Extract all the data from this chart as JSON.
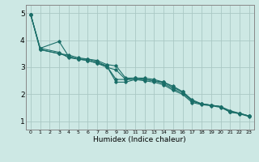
{
  "title": "",
  "xlabel": "Humidex (Indice chaleur)",
  "background_color": "#cde8e4",
  "grid_color": "#aac8c4",
  "line_color": "#1a6e68",
  "xlim": [
    -0.5,
    23.5
  ],
  "ylim": [
    0.7,
    5.3
  ],
  "xticks": [
    0,
    1,
    2,
    3,
    4,
    5,
    6,
    7,
    8,
    9,
    10,
    11,
    12,
    13,
    14,
    15,
    16,
    17,
    18,
    19,
    20,
    21,
    22,
    23
  ],
  "yticks": [
    1,
    2,
    3,
    4,
    5
  ],
  "series": [
    [
      0,
      4.95
    ],
    [
      1,
      3.7
    ],
    [
      3,
      3.55
    ],
    [
      4,
      3.35
    ],
    [
      5,
      3.3
    ],
    [
      6,
      3.25
    ],
    [
      7,
      3.15
    ],
    [
      8,
      3.05
    ],
    [
      9,
      2.55
    ],
    [
      10,
      2.55
    ],
    [
      11,
      2.6
    ],
    [
      12,
      2.6
    ],
    [
      13,
      2.55
    ],
    [
      14,
      2.45
    ],
    [
      15,
      2.25
    ],
    [
      16,
      2.1
    ],
    [
      17,
      1.8
    ],
    [
      18,
      1.65
    ],
    [
      19,
      1.6
    ],
    [
      20,
      1.55
    ],
    [
      21,
      1.35
    ],
    [
      22,
      1.3
    ],
    [
      23,
      1.2
    ]
  ],
  "series2": [
    [
      0,
      4.95
    ],
    [
      1,
      3.7
    ],
    [
      3,
      3.95
    ],
    [
      4,
      3.4
    ],
    [
      5,
      3.3
    ],
    [
      6,
      3.3
    ],
    [
      7,
      3.2
    ],
    [
      8,
      3.05
    ],
    [
      9,
      2.45
    ],
    [
      10,
      2.45
    ],
    [
      11,
      2.55
    ],
    [
      12,
      2.55
    ],
    [
      13,
      2.5
    ],
    [
      14,
      2.45
    ],
    [
      15,
      2.3
    ],
    [
      16,
      2.1
    ],
    [
      17,
      1.75
    ],
    [
      18,
      1.65
    ],
    [
      19,
      1.6
    ],
    [
      20,
      1.55
    ],
    [
      21,
      1.35
    ],
    [
      22,
      1.3
    ],
    [
      23,
      1.2
    ]
  ],
  "series3": [
    [
      0,
      4.95
    ],
    [
      1,
      3.65
    ],
    [
      3,
      3.5
    ],
    [
      4,
      3.45
    ],
    [
      5,
      3.35
    ],
    [
      6,
      3.3
    ],
    [
      7,
      3.25
    ],
    [
      8,
      3.1
    ],
    [
      9,
      3.05
    ],
    [
      10,
      2.6
    ],
    [
      11,
      2.6
    ],
    [
      12,
      2.55
    ],
    [
      13,
      2.5
    ],
    [
      14,
      2.4
    ],
    [
      15,
      2.2
    ],
    [
      16,
      2.05
    ],
    [
      17,
      1.75
    ],
    [
      18,
      1.65
    ],
    [
      19,
      1.6
    ],
    [
      20,
      1.55
    ],
    [
      21,
      1.4
    ],
    [
      22,
      1.3
    ],
    [
      23,
      1.2
    ]
  ],
  "series4": [
    [
      0,
      4.95
    ],
    [
      1,
      3.65
    ],
    [
      3,
      3.5
    ],
    [
      4,
      3.4
    ],
    [
      5,
      3.3
    ],
    [
      6,
      3.25
    ],
    [
      7,
      3.15
    ],
    [
      8,
      3.0
    ],
    [
      9,
      2.9
    ],
    [
      10,
      2.55
    ],
    [
      11,
      2.55
    ],
    [
      12,
      2.5
    ],
    [
      13,
      2.45
    ],
    [
      14,
      2.35
    ],
    [
      15,
      2.15
    ],
    [
      16,
      2.0
    ],
    [
      17,
      1.7
    ],
    [
      18,
      1.62
    ],
    [
      19,
      1.58
    ],
    [
      20,
      1.52
    ],
    [
      21,
      1.35
    ],
    [
      22,
      1.28
    ],
    [
      23,
      1.18
    ]
  ]
}
